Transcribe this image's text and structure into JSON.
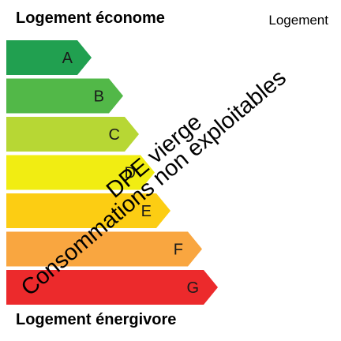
{
  "header": {
    "title": "Logement économe",
    "type_label": "Logement"
  },
  "footer": {
    "title": "Logement énergivore"
  },
  "classes": [
    {
      "letter": "A",
      "color": "#21a050",
      "letter_color": "#1a1a1a"
    },
    {
      "letter": "B",
      "color": "#52b848",
      "letter_color": "#1a1a1a"
    },
    {
      "letter": "C",
      "color": "#b7d734",
      "letter_color": "#1a1a1a"
    },
    {
      "letter": "D",
      "color": "#f1ed12",
      "letter_color": "#1a1a1a"
    },
    {
      "letter": "E",
      "color": "#fccd13",
      "letter_color": "#1a1a1a"
    },
    {
      "letter": "F",
      "color": "#f9a640",
      "letter_color": "#1a1a1a"
    },
    {
      "letter": "G",
      "color": "#ec2a2c",
      "letter_color": "#ffffff"
    }
  ],
  "overlay": {
    "line1": "DPE vierge",
    "line2": "Consommations non exploitables"
  }
}
